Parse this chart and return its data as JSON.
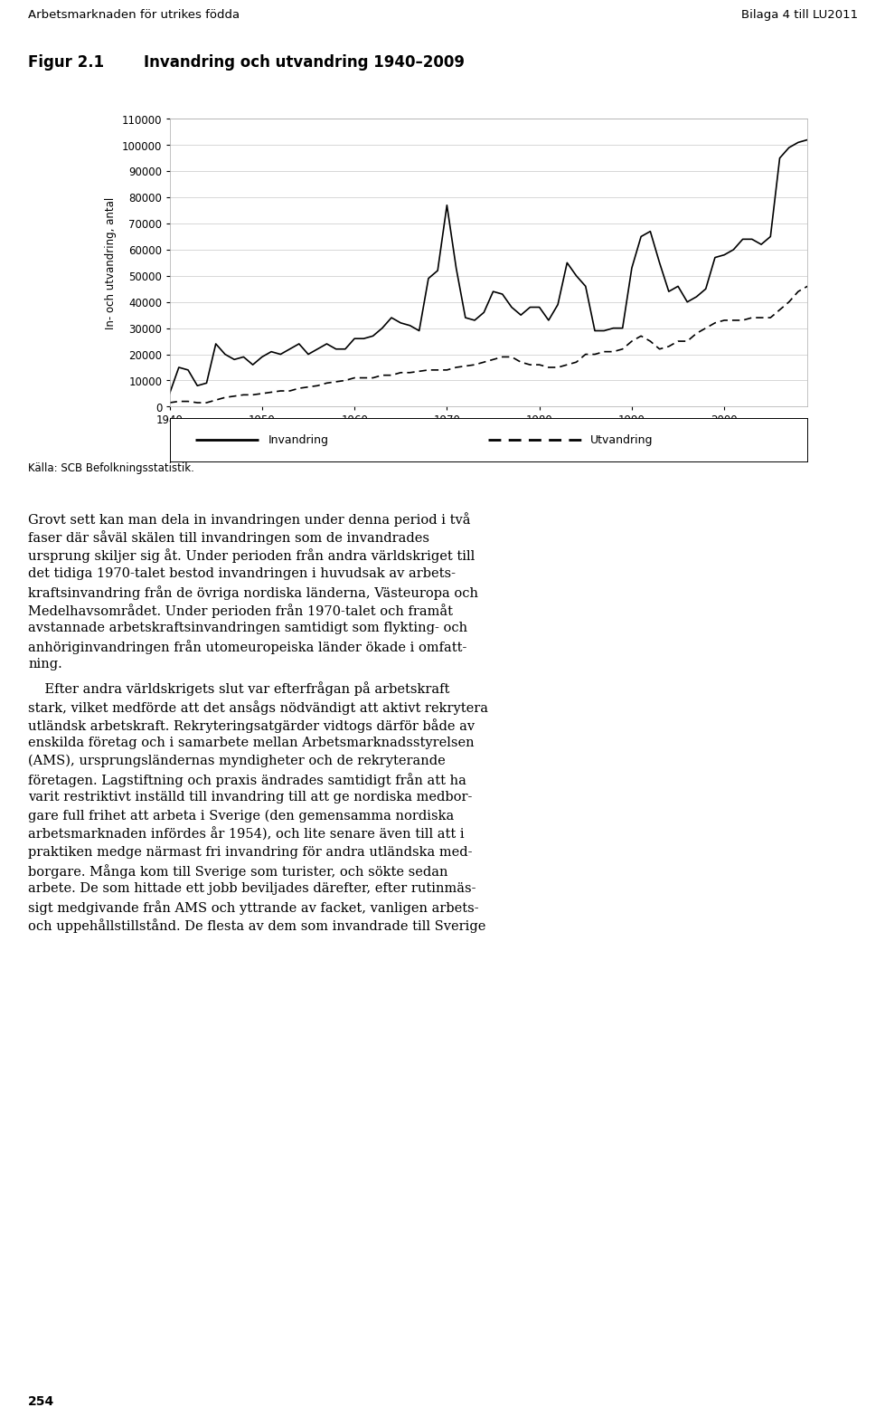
{
  "title_prefix": "Figur 2.1",
  "title_text": "Invandring och utvandring 1940–2009",
  "header_left": "Arbetsmarknaden för utrikes födda",
  "header_right": "Bilaga 4 till LU2011",
  "ylabel": "In- och utvandring, antal",
  "source": "Källa: SCB Befolkningsstatistik.",
  "legend_inv": "Invandring",
  "legend_utv": "Utvandring",
  "ylim": [
    0,
    110000
  ],
  "yticks": [
    0,
    10000,
    20000,
    30000,
    40000,
    50000,
    60000,
    70000,
    80000,
    90000,
    100000,
    110000
  ],
  "xticks": [
    1940,
    1950,
    1960,
    1970,
    1980,
    1990,
    2000
  ],
  "years": [
    1940,
    1941,
    1942,
    1943,
    1944,
    1945,
    1946,
    1947,
    1948,
    1949,
    1950,
    1951,
    1952,
    1953,
    1954,
    1955,
    1956,
    1957,
    1958,
    1959,
    1960,
    1961,
    1962,
    1963,
    1964,
    1965,
    1966,
    1967,
    1968,
    1969,
    1970,
    1971,
    1972,
    1973,
    1974,
    1975,
    1976,
    1977,
    1978,
    1979,
    1980,
    1981,
    1982,
    1983,
    1984,
    1985,
    1986,
    1987,
    1988,
    1989,
    1990,
    1991,
    1992,
    1993,
    1994,
    1995,
    1996,
    1997,
    1998,
    1999,
    2000,
    2001,
    2002,
    2003,
    2004,
    2005,
    2006,
    2007,
    2008,
    2009
  ],
  "invandring": [
    5000,
    15000,
    14000,
    8000,
    9000,
    24000,
    20000,
    18000,
    19000,
    16000,
    19000,
    21000,
    20000,
    22000,
    24000,
    20000,
    22000,
    24000,
    22000,
    22000,
    26000,
    26000,
    27000,
    30000,
    34000,
    32000,
    31000,
    29000,
    49000,
    52000,
    77000,
    53000,
    34000,
    33000,
    36000,
    44000,
    43000,
    38000,
    35000,
    38000,
    38000,
    33000,
    39000,
    55000,
    50000,
    46000,
    29000,
    29000,
    30000,
    30000,
    53000,
    65000,
    67000,
    55000,
    44000,
    46000,
    40000,
    42000,
    45000,
    57000,
    58000,
    60000,
    64000,
    64000,
    62000,
    65000,
    95000,
    99000,
    101000,
    102000
  ],
  "utvandring": [
    1500,
    2000,
    2000,
    1500,
    1500,
    2500,
    3500,
    4000,
    4500,
    4500,
    5000,
    5500,
    6000,
    6000,
    7000,
    7500,
    8000,
    9000,
    9500,
    10000,
    11000,
    11000,
    11000,
    12000,
    12000,
    13000,
    13000,
    13500,
    14000,
    14000,
    14000,
    15000,
    15500,
    16000,
    17000,
    18000,
    19000,
    19000,
    17000,
    16000,
    16000,
    15000,
    15000,
    16000,
    17000,
    20000,
    20000,
    21000,
    21000,
    22000,
    25000,
    27000,
    25000,
    22000,
    23000,
    25000,
    25000,
    28000,
    30000,
    32000,
    33000,
    33000,
    33000,
    34000,
    34000,
    34000,
    37000,
    40000,
    44000,
    46000
  ],
  "page_number": "254",
  "background_color": "#ffffff",
  "line_color": "#000000",
  "grid_color": "#c8c8c8"
}
